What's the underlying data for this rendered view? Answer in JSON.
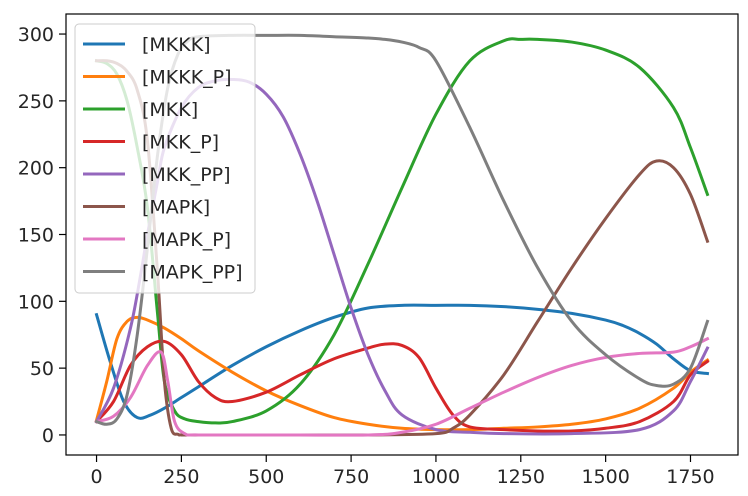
{
  "chart_data": {
    "type": "line",
    "title": "",
    "xlabel": "",
    "ylabel": "",
    "xlim": [
      -90,
      1890
    ],
    "ylim": [
      -15,
      315
    ],
    "xticks": [
      0,
      250,
      500,
      750,
      1000,
      1250,
      1500,
      1750
    ],
    "yticks": [
      0,
      50,
      100,
      150,
      200,
      250,
      300
    ],
    "xtick_labels": [
      "0",
      "250",
      "500",
      "750",
      "1000",
      "1250",
      "1500",
      "1750"
    ],
    "ytick_labels": [
      "0",
      "50",
      "100",
      "150",
      "200",
      "250",
      "300"
    ],
    "grid": false,
    "legend_position": "top-left",
    "series": [
      {
        "name": "[MKKK]",
        "color": "#1f77b4",
        "x": [
          0,
          40,
          80,
          120,
          160,
          200,
          250,
          300,
          400,
          500,
          600,
          700,
          800,
          900,
          1000,
          1100,
          1200,
          1300,
          1400,
          1500,
          1550,
          1600,
          1650,
          1700,
          1750,
          1800
        ],
        "y": [
          90,
          55,
          25,
          13,
          15,
          20,
          28,
          36,
          52,
          66,
          78,
          88,
          95,
          97,
          97,
          97,
          96,
          94,
          91,
          86,
          82,
          76,
          68,
          57,
          48,
          46
        ]
      },
      {
        "name": "[MKKK_P]",
        "color": "#ff7f0e",
        "x": [
          0,
          30,
          60,
          90,
          120,
          150,
          200,
          250,
          300,
          400,
          500,
          600,
          700,
          800,
          900,
          1000,
          1100,
          1200,
          1300,
          1400,
          1500,
          1600,
          1700,
          1750,
          1800
        ],
        "y": [
          11,
          40,
          72,
          85,
          88,
          86,
          80,
          72,
          63,
          47,
          33,
          22,
          13,
          8,
          5,
          4,
          4,
          5,
          6,
          8,
          12,
          20,
          35,
          47,
          56
        ]
      },
      {
        "name": "[MKK]",
        "color": "#2ca02c",
        "x": [
          0,
          30,
          60,
          90,
          120,
          150,
          180,
          200,
          230,
          260,
          300,
          350,
          400,
          500,
          600,
          700,
          800,
          900,
          1000,
          1100,
          1200,
          1250,
          1300,
          1400,
          1500,
          1600,
          1700,
          1750,
          1800
        ],
        "y": [
          280,
          278,
          270,
          250,
          215,
          170,
          90,
          40,
          18,
          12,
          10,
          9,
          10,
          18,
          38,
          75,
          128,
          185,
          240,
          280,
          295,
          296,
          296,
          294,
          288,
          275,
          245,
          215,
          180
        ]
      },
      {
        "name": "[MKK_P]",
        "color": "#d62728",
        "x": [
          0,
          50,
          100,
          150,
          200,
          250,
          300,
          350,
          400,
          500,
          600,
          700,
          800,
          850,
          900,
          950,
          1000,
          1050,
          1100,
          1200,
          1300,
          1400,
          1500,
          1600,
          1700,
          1750,
          1800
        ],
        "y": [
          10,
          25,
          52,
          66,
          70,
          60,
          40,
          28,
          25,
          32,
          45,
          57,
          65,
          68,
          67,
          58,
          35,
          15,
          6,
          4,
          3,
          3,
          5,
          10,
          25,
          45,
          55
        ]
      },
      {
        "name": "[MKK_PP]",
        "color": "#9467bd",
        "x": [
          0,
          50,
          100,
          130,
          150,
          180,
          200,
          250,
          300,
          350,
          400,
          450,
          500,
          550,
          600,
          650,
          700,
          750,
          800,
          850,
          900,
          1000,
          1100,
          1200,
          1400,
          1600,
          1700,
          1750,
          1800
        ],
        "y": [
          10,
          35,
          80,
          120,
          150,
          190,
          215,
          245,
          260,
          265,
          266,
          264,
          255,
          238,
          210,
          175,
          135,
          95,
          60,
          33,
          15,
          4,
          2,
          1,
          1,
          4,
          18,
          40,
          65
        ]
      },
      {
        "name": "[MAPK]",
        "color": "#8c564b",
        "x": [
          0,
          30,
          60,
          90,
          120,
          150,
          180,
          200,
          220,
          240,
          250,
          300,
          500,
          800,
          1000,
          1050,
          1100,
          1200,
          1300,
          1400,
          1500,
          1600,
          1650,
          1700,
          1750,
          1800
        ],
        "y": [
          280,
          280,
          278,
          272,
          258,
          220,
          120,
          40,
          5,
          0.5,
          0,
          0,
          0,
          0,
          1,
          5,
          15,
          45,
          85,
          125,
          162,
          195,
          205,
          200,
          180,
          145
        ]
      },
      {
        "name": "[MAPK_P]",
        "color": "#e377c2",
        "x": [
          0,
          50,
          100,
          150,
          190,
          210,
          230,
          260,
          300,
          500,
          800,
          900,
          1000,
          1100,
          1200,
          1300,
          1400,
          1500,
          1600,
          1700,
          1750,
          1800
        ],
        "y": [
          10,
          14,
          28,
          52,
          62,
          40,
          10,
          1,
          0,
          0,
          0,
          2,
          8,
          20,
          32,
          43,
          52,
          58,
          61,
          62,
          66,
          72
        ]
      },
      {
        "name": "[MAPK_PP]",
        "color": "#7f7f7f",
        "x": [
          0,
          30,
          60,
          90,
          120,
          150,
          180,
          210,
          240,
          270,
          300,
          400,
          500,
          600,
          700,
          800,
          850,
          900,
          950,
          1000,
          1100,
          1200,
          1300,
          1400,
          1500,
          1600,
          1650,
          1700,
          1750,
          1800
        ],
        "y": [
          10,
          8,
          12,
          30,
          75,
          140,
          210,
          260,
          285,
          295,
          298,
          299,
          299,
          299,
          298,
          297,
          296,
          294,
          290,
          280,
          230,
          175,
          125,
          85,
          60,
          42,
          37,
          38,
          50,
          85
        ]
      }
    ]
  }
}
